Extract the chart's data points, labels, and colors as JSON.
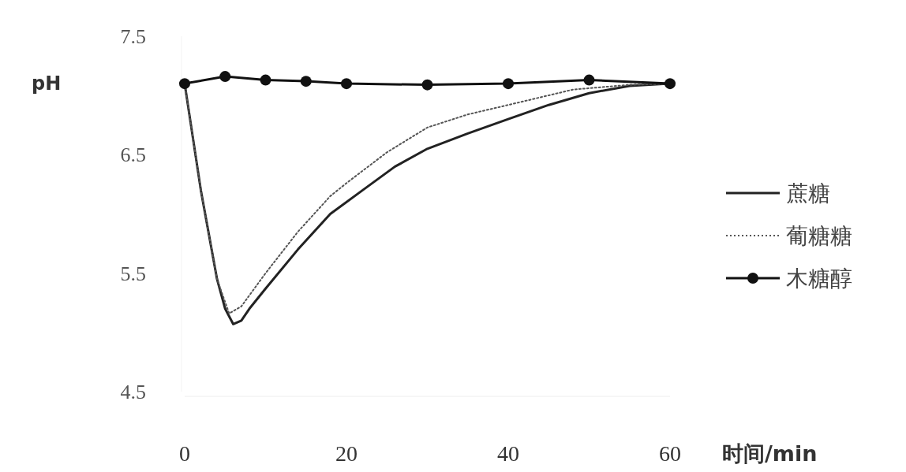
{
  "chart_data": {
    "type": "line",
    "xlabel": "时间/min",
    "ylabel": "pH",
    "xlim": [
      0,
      60
    ],
    "xticks": [
      0,
      20,
      40,
      60
    ],
    "ylim": [
      4.5,
      7.5
    ],
    "yticks": [
      {
        "value": 7.5,
        "label": "7.5"
      },
      {
        "value": 6.5,
        "label": "6.5"
      },
      {
        "value": 5.5,
        "label": "5.5"
      },
      {
        "value": 4.5,
        "label": "4.5"
      }
    ],
    "legend": "right",
    "grid": false,
    "series": [
      {
        "name": "蔗糖",
        "color": "#222222",
        "line_style": "solid",
        "marker": "none",
        "x": [
          0,
          2,
          4,
          5,
          6,
          7,
          8,
          10,
          14,
          18,
          22,
          26,
          30,
          35,
          40,
          45,
          50,
          55,
          60
        ],
        "values": [
          7.1,
          6.2,
          5.45,
          5.2,
          5.07,
          5.1,
          5.2,
          5.37,
          5.7,
          6.0,
          6.2,
          6.4,
          6.55,
          6.68,
          6.8,
          6.92,
          7.02,
          7.08,
          7.1
        ]
      },
      {
        "name": "葡糖糖",
        "color": "#555555",
        "line_style": "dotted",
        "marker": "none",
        "x": [
          0,
          2,
          4,
          5.5,
          7,
          10,
          14,
          18,
          20,
          25,
          30,
          35,
          40,
          48,
          55,
          60
        ],
        "values": [
          7.1,
          6.2,
          5.45,
          5.16,
          5.22,
          5.5,
          5.85,
          6.15,
          6.26,
          6.52,
          6.73,
          6.84,
          6.92,
          7.05,
          7.09,
          7.1
        ]
      },
      {
        "name": "木糖醇",
        "color": "#111111",
        "line_style": "solid",
        "marker": "circle",
        "x": [
          0,
          5,
          10,
          15,
          20,
          30,
          40,
          50,
          60
        ],
        "values": [
          7.1,
          7.16,
          7.13,
          7.12,
          7.1,
          7.09,
          7.1,
          7.13,
          7.1
        ]
      }
    ]
  }
}
